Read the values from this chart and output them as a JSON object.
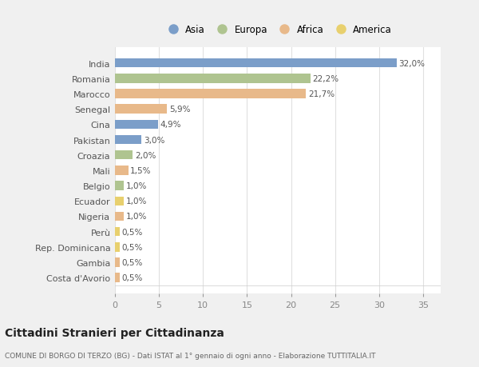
{
  "categories": [
    "India",
    "Romania",
    "Marocco",
    "Senegal",
    "Cina",
    "Pakistan",
    "Croazia",
    "Mali",
    "Belgio",
    "Ecuador",
    "Nigeria",
    "Perù",
    "Rep. Dominicana",
    "Gambia",
    "Costa d'Avorio"
  ],
  "values": [
    32.0,
    22.2,
    21.7,
    5.9,
    4.9,
    3.0,
    2.0,
    1.5,
    1.0,
    1.0,
    1.0,
    0.5,
    0.5,
    0.5,
    0.5
  ],
  "labels": [
    "32,0%",
    "22,2%",
    "21,7%",
    "5,9%",
    "4,9%",
    "3,0%",
    "2,0%",
    "1,5%",
    "1,0%",
    "1,0%",
    "1,0%",
    "0,5%",
    "0,5%",
    "0,5%",
    "0,5%"
  ],
  "continents": [
    "Asia",
    "Europa",
    "Africa",
    "Africa",
    "Asia",
    "Asia",
    "Europa",
    "Africa",
    "Europa",
    "America",
    "Africa",
    "America",
    "America",
    "Africa",
    "Africa"
  ],
  "continent_colors": {
    "Asia": "#7b9ec9",
    "Europa": "#afc490",
    "Africa": "#e8b98a",
    "America": "#e8d06e"
  },
  "legend_order": [
    "Asia",
    "Europa",
    "Africa",
    "America"
  ],
  "title": "Cittadini Stranieri per Cittadinanza",
  "subtitle": "COMUNE DI BORGO DI TERZO (BG) - Dati ISTAT al 1° gennaio di ogni anno - Elaborazione TUTTITALIA.IT",
  "xlim": [
    0,
    37
  ],
  "xticks": [
    0,
    5,
    10,
    15,
    20,
    25,
    30,
    35
  ],
  "bg_color": "#f0f0f0",
  "plot_bg_color": "#ffffff",
  "grid_color": "#e0e0e0",
  "bar_height": 0.6,
  "label_fontsize": 7.5,
  "ytick_fontsize": 8,
  "xtick_fontsize": 8,
  "title_fontsize": 10,
  "subtitle_fontsize": 6.5,
  "legend_fontsize": 8.5
}
